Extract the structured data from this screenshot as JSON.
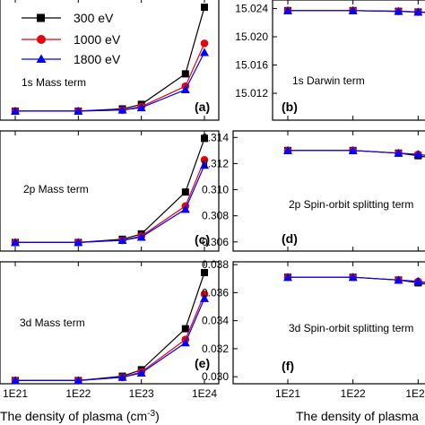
{
  "chart_data": [
    {
      "type": "line",
      "panel_label": "(a)",
      "annotation": "1s Mass term",
      "xscale": "log",
      "x": [
        1e+21,
        1e+22,
        5e+22,
        1e+23,
        5e+23,
        1e+24
      ],
      "series": [
        {
          "name": "300 eV",
          "color": "#000000",
          "marker": "square",
          "values": [
            0.0,
            0.0,
            0.02,
            0.06,
            0.33,
            0.92
          ]
        },
        {
          "name": "1000 eV",
          "color": "#e8000b",
          "marker": "circle",
          "values": [
            0.0,
            0.0,
            0.01,
            0.04,
            0.22,
            0.6
          ]
        },
        {
          "name": "1800 eV",
          "color": "#0000ff",
          "marker": "triangle",
          "values": [
            0.0,
            0.0,
            0.01,
            0.03,
            0.19,
            0.52
          ]
        }
      ],
      "ylim": [
        -0.08,
        1.0
      ],
      "yticks": [],
      "grid": false
    },
    {
      "type": "line",
      "panel_label": "(b)",
      "annotation": "1s Darwin term",
      "xscale": "log",
      "x": [
        1e+21,
        1e+22,
        5e+22,
        1e+23,
        5e+23,
        1e+24
      ],
      "series": [
        {
          "name": "300 eV",
          "color": "#000000",
          "marker": "square",
          "values": [
            15.0237,
            15.0237,
            15.0236,
            15.0235,
            15.0232,
            15.0226
          ]
        },
        {
          "name": "1000 eV",
          "color": "#e8000b",
          "marker": "circle",
          "values": [
            15.0237,
            15.0237,
            15.0236,
            15.0235,
            15.0233,
            15.0229
          ]
        },
        {
          "name": "1800 eV",
          "color": "#0000ff",
          "marker": "triangle",
          "values": [
            15.0237,
            15.0237,
            15.0236,
            15.0235,
            15.0233,
            15.023
          ]
        }
      ],
      "ylim": [
        15.0082,
        15.0252
      ],
      "yticks": [
        "15.012",
        "15.016",
        "15.020",
        "15.024"
      ],
      "grid": false
    },
    {
      "type": "line",
      "panel_label": "(c)",
      "annotation": "2p Mass term",
      "xscale": "log",
      "x": [
        1e+21,
        1e+22,
        5e+22,
        1e+23,
        5e+23,
        1e+24
      ],
      "series": [
        {
          "name": "300 eV",
          "color": "#000000",
          "marker": "square",
          "values": [
            0.0,
            0.0,
            0.03,
            0.08,
            0.47,
            0.97
          ]
        },
        {
          "name": "1000 eV",
          "color": "#e8000b",
          "marker": "circle",
          "values": [
            0.0,
            0.0,
            0.02,
            0.06,
            0.34,
            0.77
          ]
        },
        {
          "name": "1800 eV",
          "color": "#0000ff",
          "marker": "triangle",
          "values": [
            0.0,
            0.0,
            0.02,
            0.05,
            0.31,
            0.72
          ]
        }
      ],
      "ylim": [
        -0.08,
        1.04
      ],
      "yticks": [],
      "grid": false
    },
    {
      "type": "line",
      "panel_label": "(d)",
      "annotation": "2p Spin-orbit splitting term",
      "xscale": "log",
      "x": [
        1e+21,
        1e+22,
        5e+22,
        1e+23,
        5e+23,
        1e+24
      ],
      "series": [
        {
          "name": "300 eV",
          "color": "#000000",
          "marker": "square",
          "values": [
            0.313,
            0.313,
            0.3128,
            0.3126,
            0.312,
            0.311
          ]
        },
        {
          "name": "1000 eV",
          "color": "#e8000b",
          "marker": "circle",
          "values": [
            0.313,
            0.313,
            0.3128,
            0.3127,
            0.3122,
            0.3115
          ]
        },
        {
          "name": "1800 eV",
          "color": "#0000ff",
          "marker": "triangle",
          "values": [
            0.313,
            0.313,
            0.3128,
            0.3127,
            0.3123,
            0.3117
          ]
        }
      ],
      "ylim": [
        0.3053,
        0.3145
      ],
      "yticks": [
        "0.306",
        "0.308",
        "0.310",
        "0.312",
        "0.314"
      ],
      "grid": false
    },
    {
      "type": "line",
      "panel_label": "(e)",
      "annotation": "3d Mass term",
      "xscale": "log",
      "x": [
        1e+21,
        1e+22,
        5e+22,
        1e+23,
        5e+23,
        1e+24
      ],
      "series": [
        {
          "name": "300 eV",
          "color": "#000000",
          "marker": "square",
          "values": [
            0.0,
            0.0,
            0.04,
            0.1,
            0.48,
            1.0
          ]
        },
        {
          "name": "1000 eV",
          "color": "#e8000b",
          "marker": "circle",
          "values": [
            0.0,
            0.0,
            0.03,
            0.08,
            0.38,
            0.8
          ]
        },
        {
          "name": "1800 eV",
          "color": "#0000ff",
          "marker": "triangle",
          "values": [
            0.0,
            0.0,
            0.03,
            0.07,
            0.35,
            0.76
          ]
        }
      ],
      "ylim": [
        -0.03,
        1.1
      ],
      "yticks": [],
      "grid": false
    },
    {
      "type": "line",
      "panel_label": "(f)",
      "annotation": "3d Spin-orbit splitting term",
      "xscale": "log",
      "x": [
        1e+21,
        1e+22,
        5e+22,
        1e+23,
        5e+23,
        1e+24
      ],
      "series": [
        {
          "name": "300 eV",
          "color": "#000000",
          "marker": "square",
          "values": [
            0.0371,
            0.0371,
            0.0369,
            0.0367,
            0.0361,
            0.0352
          ]
        },
        {
          "name": "1000 eV",
          "color": "#e8000b",
          "marker": "circle",
          "values": [
            0.0371,
            0.0371,
            0.0369,
            0.0368,
            0.0363,
            0.0356
          ]
        },
        {
          "name": "1800 eV",
          "color": "#0000ff",
          "marker": "triangle",
          "values": [
            0.0371,
            0.0371,
            0.0369,
            0.0368,
            0.0364,
            0.0358
          ]
        }
      ],
      "ylim": [
        0.0295,
        0.0382
      ],
      "yticks": [
        "0.030",
        "0.032",
        "0.034",
        "0.036",
        "0.038"
      ],
      "grid": false
    }
  ],
  "legend": {
    "entries": [
      {
        "label": "300 eV",
        "color": "#000000",
        "marker": "square"
      },
      {
        "label": "1000 eV",
        "color": "#e8000b",
        "marker": "circle"
      },
      {
        "label": "1800 eV",
        "color": "#0000ff",
        "marker": "triangle"
      }
    ],
    "placement": "top-left of panel (a)"
  },
  "xticks": [
    "1E21",
    "1E22",
    "1E23",
    "1E24"
  ],
  "xlabel_text": "The density of plasma (cm",
  "xlabel_sup": "-3",
  "xlabel_close": ")",
  "xlabel_right": "The density of plasma"
}
